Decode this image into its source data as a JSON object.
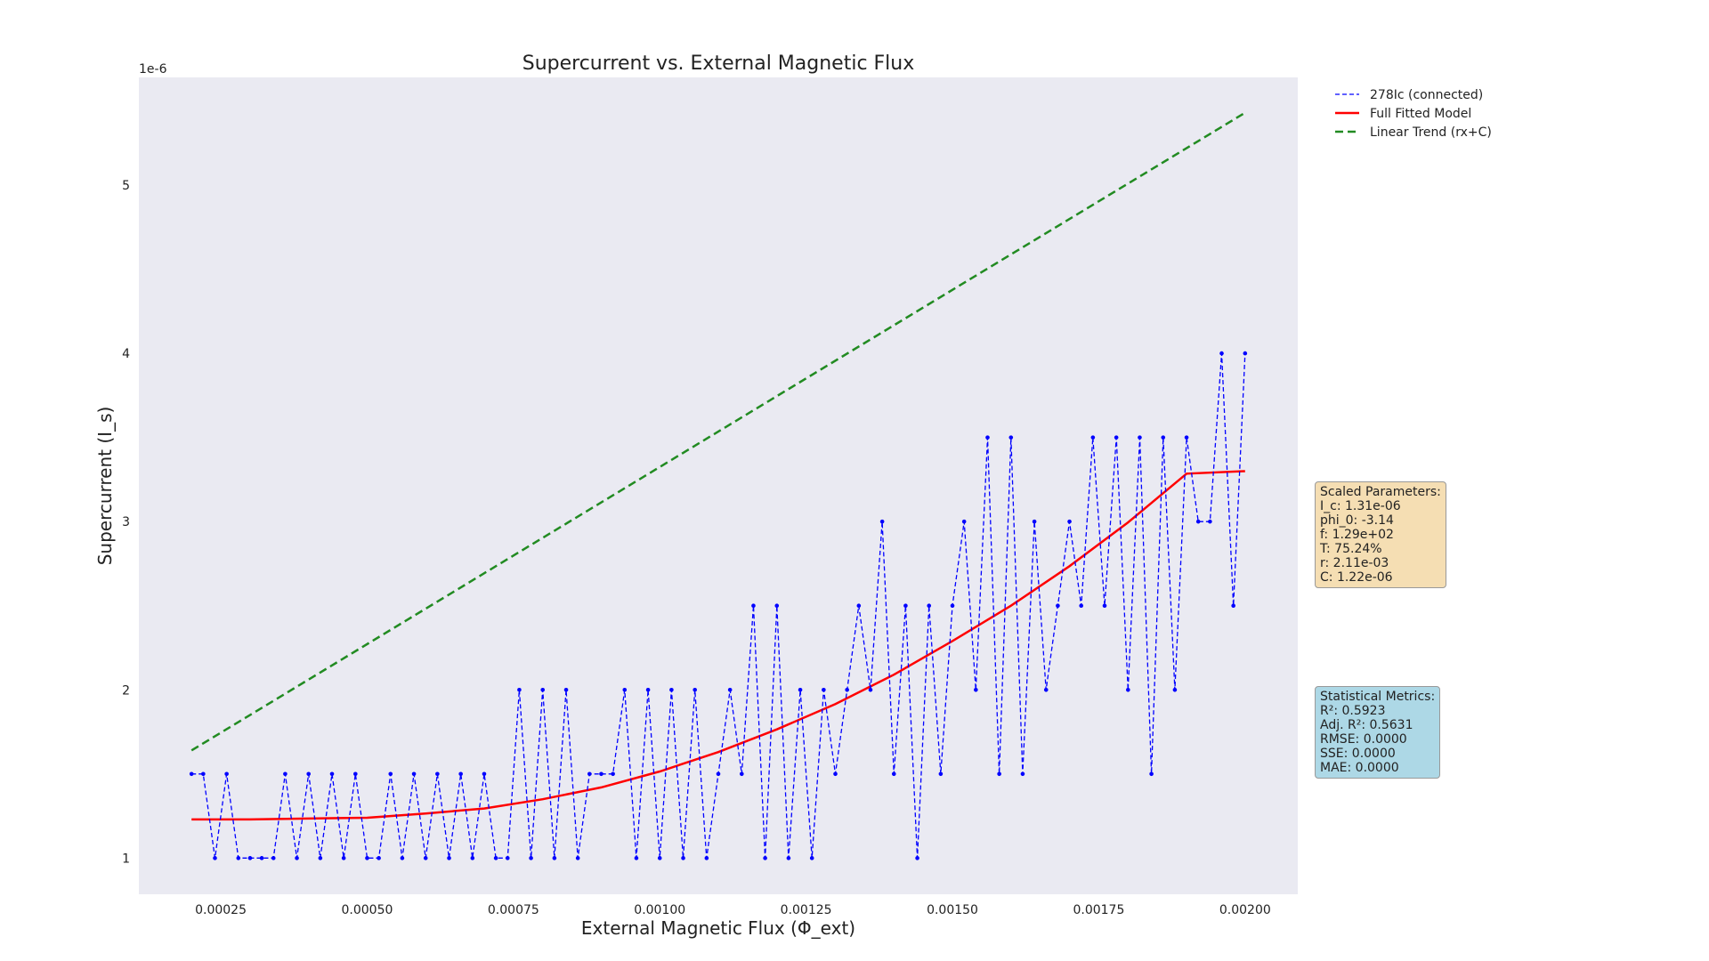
{
  "chart_data": {
    "type": "line",
    "title": "Supercurrent vs. External Magnetic Flux",
    "xlabel": "External Magnetic Flux (Φ_ext)",
    "ylabel": "Supercurrent (I_s)",
    "y_offset_label": "1e-6",
    "xlim": [
      0.00011,
      0.00209
    ],
    "ylim": [
      7.85e-07,
      5.64e-06
    ],
    "x_ticks": [
      0.00025,
      0.0005,
      0.00075,
      0.001,
      0.00125,
      0.0015,
      0.00175,
      0.002
    ],
    "x_tick_labels": [
      "0.00025",
      "0.00050",
      "0.00075",
      "0.00100",
      "0.00125",
      "0.00150",
      "0.00175",
      "0.00200"
    ],
    "y_ticks": [
      1e-06,
      2e-06,
      3e-06,
      4e-06,
      5e-06
    ],
    "y_tick_labels": [
      "1",
      "2",
      "3",
      "4",
      "5"
    ],
    "grid": false,
    "legend_position": "outside top-right",
    "series": [
      {
        "name": "278Ic (connected)",
        "style": "dashed-with-markers",
        "color": "#0000ff",
        "x": [
          0.0002,
          0.00022,
          0.00024,
          0.00026,
          0.00028,
          0.0003,
          0.00032,
          0.00034,
          0.00036,
          0.00038,
          0.0004,
          0.00042,
          0.00044,
          0.00046,
          0.00048,
          0.0005,
          0.00052,
          0.00054,
          0.00056,
          0.00058,
          0.0006,
          0.00062,
          0.00064,
          0.00066,
          0.00068,
          0.0007,
          0.00072,
          0.00074,
          0.00076,
          0.00078,
          0.0008,
          0.00082,
          0.00084,
          0.00086,
          0.00088,
          0.0009,
          0.00092,
          0.00094,
          0.00096,
          0.00098,
          0.001,
          0.00102,
          0.00104,
          0.00106,
          0.00108,
          0.0011,
          0.00112,
          0.00114,
          0.00116,
          0.00118,
          0.0012,
          0.00122,
          0.00124,
          0.00126,
          0.00128,
          0.0013,
          0.00132,
          0.00134,
          0.00136,
          0.00138,
          0.0014,
          0.00142,
          0.00144,
          0.00146,
          0.00148,
          0.0015,
          0.00152,
          0.00154,
          0.00156,
          0.00158,
          0.0016,
          0.00162,
          0.00164,
          0.00166,
          0.00168,
          0.0017,
          0.00172,
          0.00174,
          0.00176,
          0.00178,
          0.0018,
          0.00182,
          0.00184,
          0.00186,
          0.00188,
          0.0019,
          0.00192,
          0.00194,
          0.00196,
          0.00198,
          0.002
        ],
        "y": [
          1.5e-06,
          1.5e-06,
          1e-06,
          1.5e-06,
          1e-06,
          1e-06,
          1e-06,
          1e-06,
          1.5e-06,
          1e-06,
          1.5e-06,
          1e-06,
          1.5e-06,
          1e-06,
          1.5e-06,
          1e-06,
          1e-06,
          1.5e-06,
          1e-06,
          1.5e-06,
          1e-06,
          1.5e-06,
          1e-06,
          1.5e-06,
          1e-06,
          1.5e-06,
          1e-06,
          1e-06,
          2e-06,
          1e-06,
          2e-06,
          1e-06,
          2e-06,
          1e-06,
          1.5e-06,
          1.5e-06,
          1.5e-06,
          2e-06,
          1e-06,
          2e-06,
          1e-06,
          2e-06,
          1e-06,
          2e-06,
          1e-06,
          1.5e-06,
          2e-06,
          1.5e-06,
          2.5e-06,
          1e-06,
          2.5e-06,
          1e-06,
          2e-06,
          1e-06,
          2e-06,
          1.5e-06,
          2e-06,
          2.5e-06,
          2e-06,
          3e-06,
          1.5e-06,
          2.5e-06,
          1e-06,
          2.5e-06,
          1.5e-06,
          2.5e-06,
          3e-06,
          2e-06,
          3.5e-06,
          1.5e-06,
          3.5e-06,
          1.5e-06,
          3e-06,
          2e-06,
          2.5e-06,
          3e-06,
          2.5e-06,
          3.5e-06,
          2.5e-06,
          3.5e-06,
          2e-06,
          3.5e-06,
          1.5e-06,
          3.5e-06,
          2e-06,
          3.5e-06,
          3e-06,
          3e-06,
          4e-06,
          2.5e-06,
          4e-06
        ]
      },
      {
        "name": "Full Fitted Model",
        "style": "solid",
        "color": "#ff0000",
        "x": [
          0.0002,
          0.0003,
          0.0004,
          0.0005,
          0.0006,
          0.0007,
          0.0008,
          0.0009,
          0.001,
          0.0011,
          0.0012,
          0.0013,
          0.0014,
          0.0015,
          0.0016,
          0.0017,
          0.0018,
          0.0019,
          0.002
        ],
        "y": [
          1.23e-06,
          1.23e-06,
          1.235e-06,
          1.24e-06,
          1.265e-06,
          1.295e-06,
          1.35e-06,
          1.42e-06,
          1.515e-06,
          1.63e-06,
          1.765e-06,
          1.915e-06,
          2.09e-06,
          2.29e-06,
          2.5e-06,
          2.735e-06,
          2.995e-06,
          3.285e-06,
          3.3e-06
        ]
      },
      {
        "name": "Linear Trend (rx+C)",
        "style": "dashed",
        "color": "#228b22",
        "x": [
          0.0002,
          0.002
        ],
        "y": [
          1.64e-06,
          5.43e-06
        ]
      }
    ]
  },
  "params_box": {
    "lines": [
      "Scaled Parameters:",
      "I_c: 1.31e-06",
      "phi_0: -3.14",
      "f: 1.29e+02",
      "T: 75.24%",
      "r: 2.11e-03",
      "C: 1.22e-06"
    ]
  },
  "metrics_box": {
    "lines": [
      "Statistical Metrics:",
      "R²: 0.5923",
      "Adj. R²: 0.5631",
      "RMSE: 0.0000",
      "SSE: 0.0000",
      "MAE: 0.0000"
    ]
  }
}
